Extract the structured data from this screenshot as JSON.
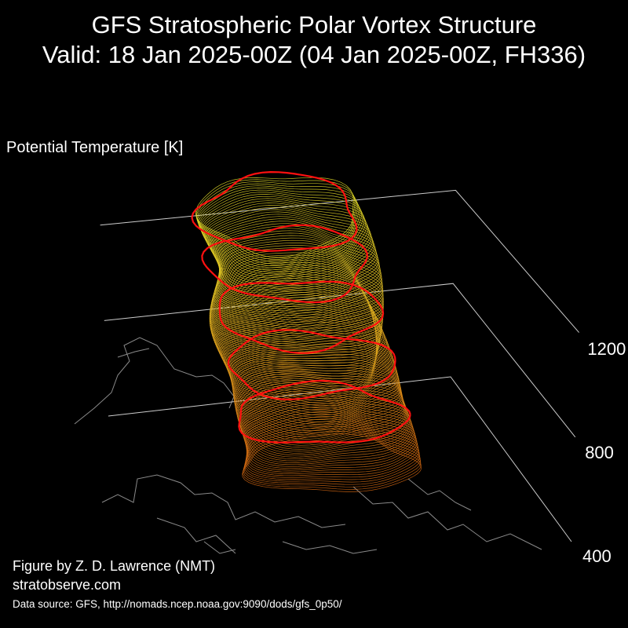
{
  "title_line1": "GFS Stratospheric Polar Vortex Structure",
  "title_line2": "Valid: 18 Jan 2025-00Z  (04 Jan 2025-00Z, FH336)",
  "credits": {
    "author": "Figure by Z. D. Lawrence (NMT)",
    "website": "stratobserve.com",
    "data_source": "Data source: GFS, http://nomads.ncep.noaa.gov:9090/dods/gfs_0p50/"
  },
  "colors": {
    "background": "#000000",
    "highlight_contour": "#ff1010",
    "low_level_contour": "#d96a12",
    "high_level_contour": "#e6e02a",
    "coastline": "#8a8a8a",
    "axis_line": "#cccccc"
  },
  "chart_data": {
    "type": "3d-isosurface",
    "zlabel": "Potential Temperature [K]",
    "z_ticks": [
      400,
      800,
      1200
    ],
    "z_tick_labels": [
      "400",
      "800",
      "1200"
    ],
    "zlim": [
      400,
      1400
    ],
    "highlighted_levels": [
      600,
      800,
      1000,
      1200,
      1400
    ],
    "series": [
      {
        "level": 600,
        "color": "#ff1010"
      },
      {
        "level": 800,
        "color": "#ff1010"
      },
      {
        "level": 1000,
        "color": "#ff1010"
      },
      {
        "level": 1200,
        "color": "#ff1010"
      },
      {
        "level": 1400,
        "color": "#ff1010"
      }
    ]
  }
}
